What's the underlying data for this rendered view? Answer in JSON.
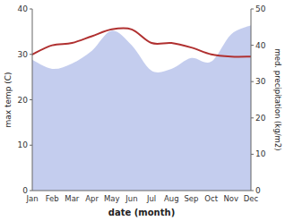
{
  "chart_data": {
    "type": "line",
    "categories": [
      "Jan",
      "Feb",
      "Mar",
      "Apr",
      "May",
      "Jun",
      "Jul",
      "Aug",
      "Sep",
      "Oct",
      "Nov",
      "Dec"
    ],
    "series": [
      {
        "type": "area",
        "color": "#b0bce8",
        "axis": "y2",
        "values": [
          36.0,
          33.5,
          35.0,
          38.5,
          44.0,
          40.0,
          33.0,
          33.5,
          36.5,
          35.5,
          43.0,
          45.5
        ]
      },
      {
        "type": "line",
        "color": "#b03030",
        "values": [
          30.0,
          32.0,
          32.5,
          34.0,
          35.5,
          35.5,
          32.5,
          32.5,
          31.5,
          30.0,
          29.5,
          29.5
        ]
      }
    ],
    "ylim": [
      0,
      40
    ],
    "yticks": [
      0,
      10,
      20,
      30,
      40
    ],
    "y2lim": [
      0,
      50
    ],
    "y2ticks": [
      0,
      10,
      20,
      30,
      40,
      50
    ],
    "xlabel": "date (month)",
    "ylabel": "max temp (C)",
    "y2label": "med. precipitation (kg/m2)",
    "grid": false
  }
}
